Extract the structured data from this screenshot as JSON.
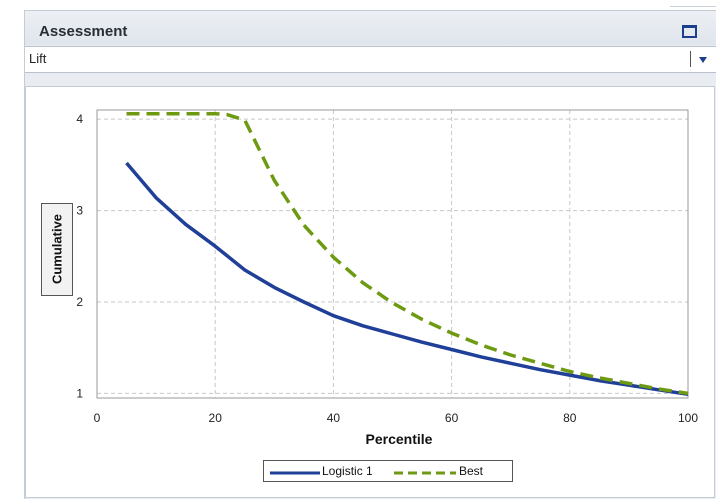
{
  "panel": {
    "title": "Assessment",
    "dropdown": {
      "selected": "Lift"
    }
  },
  "colors": {
    "logistic": "#1f3f98",
    "best": "#6e9a12",
    "grid": "#c8c8c8"
  },
  "icons": {
    "maximize": "maximize-icon",
    "dropdown": "chevron-down-icon"
  },
  "chart_data": {
    "type": "line",
    "xlabel": "Percentile",
    "ylabel": "Cumulative",
    "xlim": [
      0,
      100
    ],
    "ylim": [
      0.95,
      4.1
    ],
    "xticks": [
      0,
      20,
      40,
      60,
      80,
      100
    ],
    "yticks": [
      1,
      2,
      3,
      4
    ],
    "grid": true,
    "legend_position": "bottom",
    "series": [
      {
        "name": "Logistic 1",
        "style": "solid",
        "x": [
          5,
          10,
          15,
          20,
          25,
          30,
          35,
          40,
          45,
          50,
          55,
          60,
          65,
          70,
          75,
          80,
          85,
          90,
          95,
          100
        ],
        "y": [
          3.52,
          3.14,
          2.85,
          2.61,
          2.35,
          2.16,
          2.0,
          1.85,
          1.74,
          1.65,
          1.56,
          1.48,
          1.4,
          1.33,
          1.26,
          1.2,
          1.14,
          1.09,
          1.04,
          0.99
        ]
      },
      {
        "name": "Best",
        "style": "dashed",
        "x": [
          5,
          10,
          15,
          20,
          22,
          25,
          30,
          35,
          40,
          45,
          50,
          55,
          60,
          65,
          70,
          75,
          80,
          85,
          90,
          95,
          100
        ],
        "y": [
          4.06,
          4.06,
          4.06,
          4.06,
          4.05,
          3.99,
          3.33,
          2.84,
          2.49,
          2.21,
          1.99,
          1.81,
          1.66,
          1.53,
          1.42,
          1.33,
          1.24,
          1.17,
          1.11,
          1.05,
          1.0
        ]
      }
    ]
  }
}
